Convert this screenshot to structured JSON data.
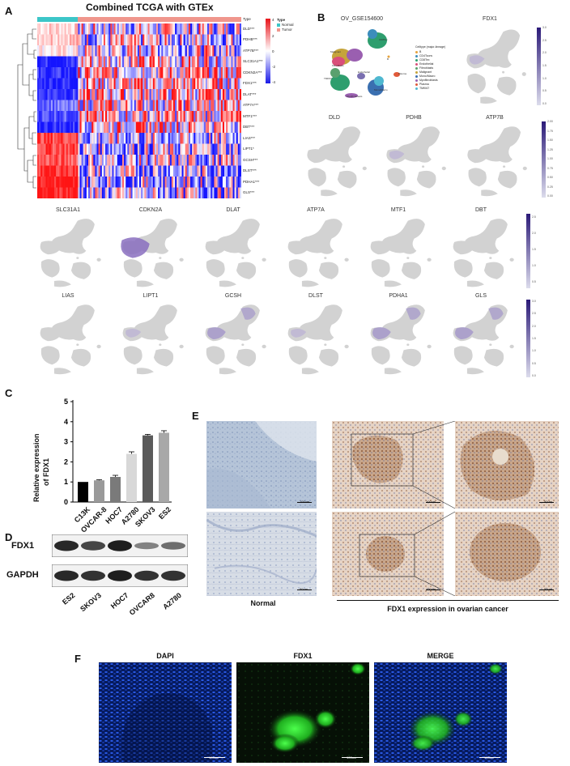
{
  "panel_labels": [
    "A",
    "B",
    "C",
    "D",
    "E",
    "F"
  ],
  "panel_a": {
    "title": "Combined TCGA with GTEx",
    "legend_title": "Type",
    "legend_items": [
      "Normal",
      "Tumor"
    ],
    "legend_colors": [
      "#3cc6c8",
      "#f0968c"
    ],
    "scale_ticks": [
      "4",
      "2",
      "0",
      "-2",
      "-4"
    ],
    "type_label": "Type",
    "genes": [
      "DLD***",
      "PDHB***",
      "ATP7B***",
      "SLC31A1***",
      "CDKN2A***",
      "FDX1***",
      "DLAT***",
      "ATP7A***",
      "MTF1***",
      "DBT***",
      "LIAS***",
      "LIPT1*",
      "GCSH***",
      "DLST***",
      "PDHA1***",
      "GLS***"
    ]
  },
  "panel_b": {
    "dataset_title": "OV_GSE154600",
    "celltype_legend_title": "Celltype (major-lineage)",
    "celltypes": [
      "B",
      "CD4Tconv",
      "CD8Tex",
      "Endothelial",
      "Fibroblasts",
      "Malignant",
      "Mono/Macro",
      "Myofibroblasts",
      "Plasma",
      "TMKI67"
    ],
    "celltype_colors": [
      "#e6a23c",
      "#3c8dbc",
      "#2e9e6e",
      "#d94f7a",
      "#5aa06e",
      "#c5a43a",
      "#3a6fb0",
      "#9a5fb0",
      "#e05a3a",
      "#4fb8d0"
    ],
    "cluster_labels": [
      "CD8Tex",
      "Malignant",
      "Fibroblasts",
      "Endothelial",
      "Plasma",
      "Mono/Macro",
      "Myofibroblasts",
      "TMKI67",
      "B"
    ],
    "fdx1_title": "FDX1",
    "row2_genes": [
      "DLD",
      "PDHB",
      "ATP7B"
    ],
    "row3_genes": [
      "SLC31A1",
      "CDKN2A",
      "DLAT",
      "ATP7A",
      "MTF1",
      "DBT"
    ],
    "row4_genes": [
      "LIAS",
      "LIPT1",
      "GCSH",
      "DLST",
      "PDHA1",
      "GLS"
    ],
    "fdx1_ticks": [
      "3.0",
      "2.5",
      "2.0",
      "1.5",
      "1.0",
      "0.5",
      "0.0"
    ],
    "row2_ticks": [
      "2.00",
      "1.75",
      "1.50",
      "1.25",
      "1.00",
      "0.75",
      "0.50",
      "0.25",
      "0.00"
    ],
    "row3_ticks": [
      "2.5",
      "2.0",
      "1.5",
      "1.0",
      "0.5"
    ],
    "row4_ticks": [
      "3.0",
      "2.5",
      "2.0",
      "1.5",
      "1.0",
      "0.5",
      "0.0"
    ]
  },
  "chart_data": {
    "type": "bar",
    "categories": [
      "C13K",
      "OVCAR-8",
      "HOC7",
      "A2780",
      "SKOV3",
      "ES2"
    ],
    "values": [
      1.0,
      1.08,
      1.25,
      2.4,
      3.32,
      3.45
    ],
    "errors": [
      0.0,
      0.03,
      0.08,
      0.1,
      0.05,
      0.1
    ],
    "colors": [
      "#000000",
      "#9a9a9a",
      "#7a7a7a",
      "#d8d8d8",
      "#5a5a5a",
      "#a8a8a8"
    ],
    "ylabel_line1": "Relative expression",
    "ylabel_line2": "of FDX1",
    "ylim": [
      0,
      5
    ],
    "yticks": [
      "0",
      "1",
      "2",
      "3",
      "4",
      "5"
    ]
  },
  "panel_d": {
    "proteins": [
      "FDX1",
      "GAPDH"
    ],
    "lanes": [
      "ES2",
      "SKOV3",
      "HOC7",
      "OVCAR8",
      "A2780"
    ],
    "fdx1_band_intensity": [
      0.9,
      0.75,
      0.95,
      0.45,
      0.55
    ],
    "gapdh_band_intensity": [
      0.9,
      0.85,
      0.95,
      0.85,
      0.85
    ]
  },
  "panel_e": {
    "normal_caption": "Normal",
    "cancer_caption": "FDX1 expression in ovarian cancer",
    "scale_labels": [
      "100um",
      "100um",
      "50um",
      "50um",
      "100um",
      "50um"
    ]
  },
  "panel_f": {
    "channels": [
      "DAPI",
      "FDX1",
      "MERGE"
    ],
    "scale_label": "100um"
  }
}
